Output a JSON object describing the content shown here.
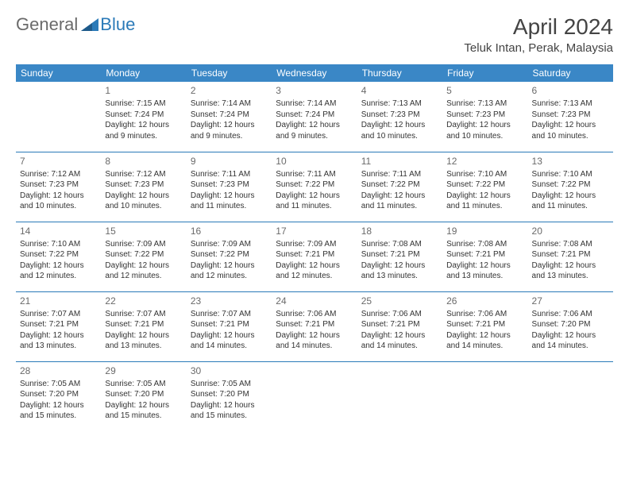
{
  "logo": {
    "general": "General",
    "blue": "Blue"
  },
  "title": {
    "month": "April 2024",
    "location": "Teluk Intan, Perak, Malaysia"
  },
  "colors": {
    "header_bg": "#3a87c6",
    "header_text": "#ffffff",
    "rule": "#2a7ab8",
    "logo_gray": "#6a6a6a",
    "logo_blue": "#2a7ab8",
    "body_text": "#333333",
    "daynum": "#6a6a6a",
    "background": "#ffffff"
  },
  "weekdays": [
    "Sunday",
    "Monday",
    "Tuesday",
    "Wednesday",
    "Thursday",
    "Friday",
    "Saturday"
  ],
  "weeks": [
    [
      null,
      {
        "n": "1",
        "sr": "Sunrise: 7:15 AM",
        "ss": "Sunset: 7:24 PM",
        "d1": "Daylight: 12 hours",
        "d2": "and 9 minutes."
      },
      {
        "n": "2",
        "sr": "Sunrise: 7:14 AM",
        "ss": "Sunset: 7:24 PM",
        "d1": "Daylight: 12 hours",
        "d2": "and 9 minutes."
      },
      {
        "n": "3",
        "sr": "Sunrise: 7:14 AM",
        "ss": "Sunset: 7:24 PM",
        "d1": "Daylight: 12 hours",
        "d2": "and 9 minutes."
      },
      {
        "n": "4",
        "sr": "Sunrise: 7:13 AM",
        "ss": "Sunset: 7:23 PM",
        "d1": "Daylight: 12 hours",
        "d2": "and 10 minutes."
      },
      {
        "n": "5",
        "sr": "Sunrise: 7:13 AM",
        "ss": "Sunset: 7:23 PM",
        "d1": "Daylight: 12 hours",
        "d2": "and 10 minutes."
      },
      {
        "n": "6",
        "sr": "Sunrise: 7:13 AM",
        "ss": "Sunset: 7:23 PM",
        "d1": "Daylight: 12 hours",
        "d2": "and 10 minutes."
      }
    ],
    [
      {
        "n": "7",
        "sr": "Sunrise: 7:12 AM",
        "ss": "Sunset: 7:23 PM",
        "d1": "Daylight: 12 hours",
        "d2": "and 10 minutes."
      },
      {
        "n": "8",
        "sr": "Sunrise: 7:12 AM",
        "ss": "Sunset: 7:23 PM",
        "d1": "Daylight: 12 hours",
        "d2": "and 10 minutes."
      },
      {
        "n": "9",
        "sr": "Sunrise: 7:11 AM",
        "ss": "Sunset: 7:23 PM",
        "d1": "Daylight: 12 hours",
        "d2": "and 11 minutes."
      },
      {
        "n": "10",
        "sr": "Sunrise: 7:11 AM",
        "ss": "Sunset: 7:22 PM",
        "d1": "Daylight: 12 hours",
        "d2": "and 11 minutes."
      },
      {
        "n": "11",
        "sr": "Sunrise: 7:11 AM",
        "ss": "Sunset: 7:22 PM",
        "d1": "Daylight: 12 hours",
        "d2": "and 11 minutes."
      },
      {
        "n": "12",
        "sr": "Sunrise: 7:10 AM",
        "ss": "Sunset: 7:22 PM",
        "d1": "Daylight: 12 hours",
        "d2": "and 11 minutes."
      },
      {
        "n": "13",
        "sr": "Sunrise: 7:10 AM",
        "ss": "Sunset: 7:22 PM",
        "d1": "Daylight: 12 hours",
        "d2": "and 11 minutes."
      }
    ],
    [
      {
        "n": "14",
        "sr": "Sunrise: 7:10 AM",
        "ss": "Sunset: 7:22 PM",
        "d1": "Daylight: 12 hours",
        "d2": "and 12 minutes."
      },
      {
        "n": "15",
        "sr": "Sunrise: 7:09 AM",
        "ss": "Sunset: 7:22 PM",
        "d1": "Daylight: 12 hours",
        "d2": "and 12 minutes."
      },
      {
        "n": "16",
        "sr": "Sunrise: 7:09 AM",
        "ss": "Sunset: 7:22 PM",
        "d1": "Daylight: 12 hours",
        "d2": "and 12 minutes."
      },
      {
        "n": "17",
        "sr": "Sunrise: 7:09 AM",
        "ss": "Sunset: 7:21 PM",
        "d1": "Daylight: 12 hours",
        "d2": "and 12 minutes."
      },
      {
        "n": "18",
        "sr": "Sunrise: 7:08 AM",
        "ss": "Sunset: 7:21 PM",
        "d1": "Daylight: 12 hours",
        "d2": "and 13 minutes."
      },
      {
        "n": "19",
        "sr": "Sunrise: 7:08 AM",
        "ss": "Sunset: 7:21 PM",
        "d1": "Daylight: 12 hours",
        "d2": "and 13 minutes."
      },
      {
        "n": "20",
        "sr": "Sunrise: 7:08 AM",
        "ss": "Sunset: 7:21 PM",
        "d1": "Daylight: 12 hours",
        "d2": "and 13 minutes."
      }
    ],
    [
      {
        "n": "21",
        "sr": "Sunrise: 7:07 AM",
        "ss": "Sunset: 7:21 PM",
        "d1": "Daylight: 12 hours",
        "d2": "and 13 minutes."
      },
      {
        "n": "22",
        "sr": "Sunrise: 7:07 AM",
        "ss": "Sunset: 7:21 PM",
        "d1": "Daylight: 12 hours",
        "d2": "and 13 minutes."
      },
      {
        "n": "23",
        "sr": "Sunrise: 7:07 AM",
        "ss": "Sunset: 7:21 PM",
        "d1": "Daylight: 12 hours",
        "d2": "and 14 minutes."
      },
      {
        "n": "24",
        "sr": "Sunrise: 7:06 AM",
        "ss": "Sunset: 7:21 PM",
        "d1": "Daylight: 12 hours",
        "d2": "and 14 minutes."
      },
      {
        "n": "25",
        "sr": "Sunrise: 7:06 AM",
        "ss": "Sunset: 7:21 PM",
        "d1": "Daylight: 12 hours",
        "d2": "and 14 minutes."
      },
      {
        "n": "26",
        "sr": "Sunrise: 7:06 AM",
        "ss": "Sunset: 7:21 PM",
        "d1": "Daylight: 12 hours",
        "d2": "and 14 minutes."
      },
      {
        "n": "27",
        "sr": "Sunrise: 7:06 AM",
        "ss": "Sunset: 7:20 PM",
        "d1": "Daylight: 12 hours",
        "d2": "and 14 minutes."
      }
    ],
    [
      {
        "n": "28",
        "sr": "Sunrise: 7:05 AM",
        "ss": "Sunset: 7:20 PM",
        "d1": "Daylight: 12 hours",
        "d2": "and 15 minutes."
      },
      {
        "n": "29",
        "sr": "Sunrise: 7:05 AM",
        "ss": "Sunset: 7:20 PM",
        "d1": "Daylight: 12 hours",
        "d2": "and 15 minutes."
      },
      {
        "n": "30",
        "sr": "Sunrise: 7:05 AM",
        "ss": "Sunset: 7:20 PM",
        "d1": "Daylight: 12 hours",
        "d2": "and 15 minutes."
      },
      null,
      null,
      null,
      null
    ]
  ]
}
